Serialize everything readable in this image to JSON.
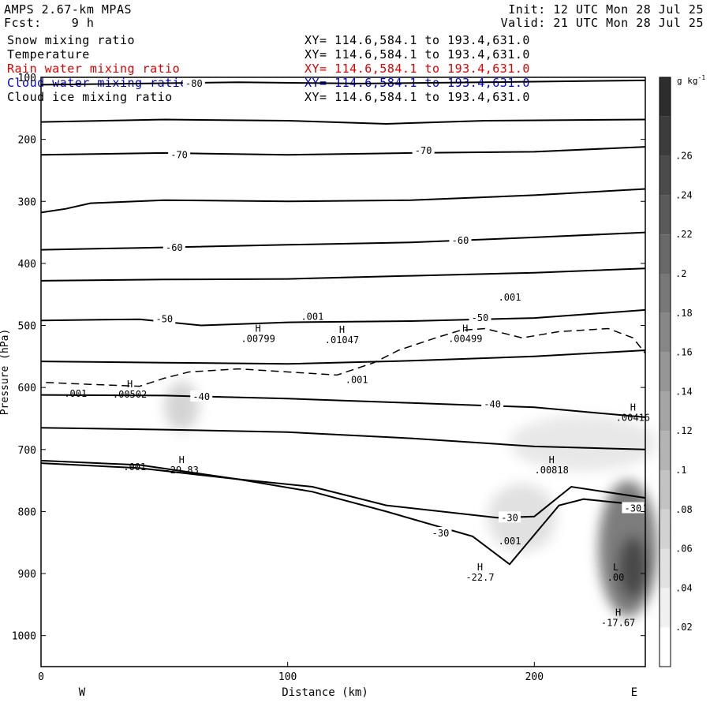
{
  "header": {
    "model": "AMPS 2.67-km MPAS",
    "forecast": "Fcst:    9 h",
    "init": "Init: 12 UTC Mon 28 Jul 25",
    "valid": "Valid: 21 UTC Mon 28 Jul 25"
  },
  "fields": [
    {
      "name": "Snow mixing ratio",
      "xy": "XY= 114.6,584.1 to 193.4,631.0",
      "color": "#000000"
    },
    {
      "name": "Temperature",
      "xy": "XY= 114.6,584.1 to 193.4,631.0",
      "color": "#000000"
    },
    {
      "name": "Rain water mixing ratio",
      "xy": "XY= 114.6,584.1 to 193.4,631.0",
      "color": "#e00000"
    },
    {
      "name": "Cloud water mixing ratio",
      "xy": "XY= 114.6,584.1 to 193.4,631.0",
      "color": "#0000d0"
    },
    {
      "name": "Cloud ice mixing ratio",
      "xy": "XY= 114.6,584.1 to 193.4,631.0",
      "color": "#000000"
    }
  ],
  "chart_data": {
    "type": "cross-section contour",
    "xlabel": "Distance (km)",
    "ylabel": "Pressure (hPa)",
    "xlim": [
      0,
      245
    ],
    "ylim": [
      1050,
      100
    ],
    "x_ticks": [
      "0",
      "100",
      "200"
    ],
    "x_tick_values": [
      0,
      100,
      200
    ],
    "y_ticks": [
      "100",
      "200",
      "300",
      "400",
      "500",
      "600",
      "700",
      "800",
      "900",
      "1000"
    ],
    "y_tick_values": [
      100,
      200,
      300,
      400,
      500,
      600,
      700,
      800,
      900,
      1000
    ],
    "left_end_label": "W",
    "right_end_label": "E",
    "colorbar": {
      "unit": "g kg",
      "unit_exp": "-1",
      "levels": [
        ".02",
        ".04",
        ".06",
        ".08",
        ".1",
        ".12",
        ".14",
        ".16",
        ".18",
        ".2",
        ".22",
        ".24",
        ".26"
      ],
      "level_values": [
        0.02,
        0.04,
        0.06,
        0.08,
        0.1,
        0.12,
        0.14,
        0.16,
        0.18,
        0.2,
        0.22,
        0.24,
        0.26
      ],
      "min": 0,
      "max": 0.3
    },
    "isotherms": [
      {
        "label": "-80",
        "points": [
          [
            0,
            112
          ],
          [
            40,
            110
          ],
          [
            80,
            108
          ],
          [
            130,
            110
          ],
          [
            180,
            108
          ],
          [
            245,
            105
          ]
        ]
      },
      {
        "label": "",
        "points": [
          [
            0,
            172
          ],
          [
            50,
            168
          ],
          [
            100,
            170
          ],
          [
            140,
            175
          ],
          [
            180,
            170
          ],
          [
            245,
            168
          ]
        ]
      },
      {
        "label": "-70",
        "points": [
          [
            0,
            225
          ],
          [
            50,
            222
          ],
          [
            100,
            225
          ],
          [
            150,
            222
          ],
          [
            200,
            220
          ],
          [
            245,
            212
          ]
        ]
      },
      {
        "label": "",
        "points": [
          [
            0,
            318
          ],
          [
            10,
            312
          ],
          [
            20,
            303
          ],
          [
            50,
            298
          ],
          [
            100,
            300
          ],
          [
            150,
            298
          ],
          [
            200,
            290
          ],
          [
            245,
            280
          ]
        ]
      },
      {
        "label": "-60",
        "points": [
          [
            0,
            378
          ],
          [
            40,
            375
          ],
          [
            100,
            370
          ],
          [
            150,
            366
          ],
          [
            200,
            358
          ],
          [
            245,
            350
          ]
        ]
      },
      {
        "label": "",
        "points": [
          [
            0,
            428
          ],
          [
            50,
            426
          ],
          [
            100,
            425
          ],
          [
            150,
            420
          ],
          [
            200,
            415
          ],
          [
            245,
            408
          ]
        ]
      },
      {
        "label": "-50",
        "points": [
          [
            0,
            492
          ],
          [
            40,
            490
          ],
          [
            65,
            500
          ],
          [
            100,
            495
          ],
          [
            150,
            493
          ],
          [
            200,
            488
          ],
          [
            245,
            475
          ]
        ]
      },
      {
        "label": "",
        "points": [
          [
            0,
            558
          ],
          [
            50,
            560
          ],
          [
            100,
            562
          ],
          [
            150,
            557
          ],
          [
            200,
            550
          ],
          [
            245,
            540
          ]
        ]
      },
      {
        "label": "-40",
        "points": [
          [
            0,
            612
          ],
          [
            50,
            613
          ],
          [
            100,
            618
          ],
          [
            150,
            625
          ],
          [
            200,
            632
          ],
          [
            245,
            648
          ]
        ]
      },
      {
        "label": "",
        "points": [
          [
            0,
            665
          ],
          [
            50,
            668
          ],
          [
            100,
            672
          ],
          [
            150,
            682
          ],
          [
            200,
            695
          ],
          [
            245,
            700
          ]
        ]
      },
      {
        "label": "",
        "points": [
          [
            0,
            718
          ],
          [
            40,
            725
          ],
          [
            80,
            748
          ],
          [
            110,
            768
          ],
          [
            140,
            800
          ],
          [
            175,
            840
          ],
          [
            190,
            885
          ],
          [
            210,
            790
          ],
          [
            220,
            780
          ],
          [
            245,
            790
          ]
        ]
      },
      {
        "label": "-30",
        "points": [
          [
            0,
            722
          ],
          [
            40,
            730
          ],
          [
            80,
            748
          ],
          [
            110,
            760
          ],
          [
            140,
            790
          ],
          [
            185,
            810
          ],
          [
            200,
            808
          ],
          [
            215,
            760
          ],
          [
            245,
            778
          ]
        ]
      }
    ],
    "isotherm_labels": [
      {
        "text": "-80",
        "x": 62,
        "p": 110
      },
      {
        "text": "-70",
        "x": 56,
        "p": 225
      },
      {
        "text": "-70",
        "x": 155,
        "p": 218
      },
      {
        "text": "-60",
        "x": 54,
        "p": 375
      },
      {
        "text": "-60",
        "x": 170,
        "p": 363
      },
      {
        "text": "-50",
        "x": 50,
        "p": 490
      },
      {
        "text": "-50",
        "x": 178,
        "p": 488
      },
      {
        "text": "-40",
        "x": 65,
        "p": 615
      },
      {
        "text": "-40",
        "x": 183,
        "p": 627
      },
      {
        "text": "-30",
        "x": 190,
        "p": 810
      },
      {
        "text": "-30",
        "x": 240,
        "p": 795
      },
      {
        "text": "-30",
        "x": 162,
        "p": 835
      }
    ],
    "cloud_contour_001": [
      [
        2,
        592
      ],
      [
        20,
        595
      ],
      [
        40,
        598
      ],
      [
        50,
        585
      ],
      [
        60,
        575
      ],
      [
        80,
        570
      ],
      [
        100,
        575
      ],
      [
        120,
        580
      ],
      [
        135,
        560
      ],
      [
        145,
        540
      ],
      [
        160,
        520
      ],
      [
        170,
        508
      ],
      [
        180,
        505
      ],
      [
        185,
        510
      ],
      [
        195,
        520
      ],
      [
        210,
        510
      ],
      [
        230,
        505
      ],
      [
        240,
        520
      ],
      [
        245,
        545
      ]
    ],
    "cloud_contour_labels": [
      {
        "text": ".001",
        "x": 110,
        "p": 486
      },
      {
        "text": ".001",
        "x": 190,
        "p": 455
      },
      {
        "text": ".001",
        "x": 128,
        "p": 588
      },
      {
        "text": ".001",
        "x": 14,
        "p": 610
      },
      {
        "text": ".001",
        "x": 38,
        "p": 728
      },
      {
        "text": ".001",
        "x": 190,
        "p": 848
      }
    ],
    "extrema": [
      {
        "type": "H",
        "value": ".00799",
        "x": 88,
        "p": 510
      },
      {
        "type": "H",
        "value": ".01047",
        "x": 122,
        "p": 512
      },
      {
        "type": "H",
        "value": ".00499",
        "x": 172,
        "p": 510
      },
      {
        "type": "H",
        "value": ".00502",
        "x": 36,
        "p": 600
      },
      {
        "type": "H",
        "value": "-29.83",
        "x": 57,
        "p": 722
      },
      {
        "type": "H",
        "value": ".00818",
        "x": 207,
        "p": 722
      },
      {
        "type": "H",
        "value": ".00416",
        "x": 240,
        "p": 637
      },
      {
        "type": "H",
        "value": "-22.7",
        "x": 178,
        "p": 895
      },
      {
        "type": "L",
        "value": ".00",
        "x": 233,
        "p": 895
      },
      {
        "type": "H",
        "value": "-17.67",
        "x": 234,
        "p": 968
      }
    ],
    "snow_blobs": [
      {
        "x": 57,
        "p": 630,
        "rx": 7,
        "rp": 40,
        "value": 0.05
      },
      {
        "x": 195,
        "p": 810,
        "rx": 14,
        "rp": 55,
        "value": 0.03
      },
      {
        "x": 220,
        "p": 690,
        "rx": 30,
        "rp": 45,
        "value": 0.02
      },
      {
        "x": 238,
        "p": 860,
        "rx": 12,
        "rp": 110,
        "value": 0.18
      },
      {
        "x": 240,
        "p": 890,
        "rx": 6,
        "rp": 50,
        "value": 0.26
      }
    ]
  }
}
